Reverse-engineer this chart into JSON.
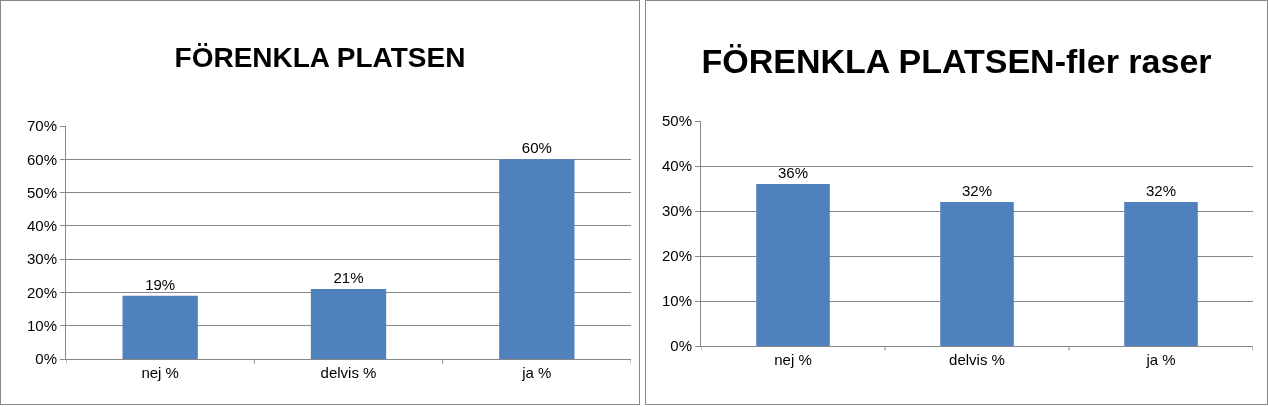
{
  "chart_data": [
    {
      "type": "bar",
      "title": "FÖRENKLA PLATSEN",
      "categories": [
        "nej %",
        "delvis %",
        "ja %"
      ],
      "values": [
        19,
        21,
        60
      ],
      "value_labels": [
        "19%",
        "21%",
        "60%"
      ],
      "color": "#4f81bd",
      "ylim": [
        0,
        70
      ],
      "yticks": [
        {
          "value": 0,
          "label": "0%"
        },
        {
          "value": 10,
          "label": "10%"
        },
        {
          "value": 20,
          "label": "20%"
        },
        {
          "value": 30,
          "label": "30%"
        },
        {
          "value": 40,
          "label": "40%"
        },
        {
          "value": 50,
          "label": "50%"
        },
        {
          "value": 60,
          "label": "60%"
        },
        {
          "value": 70,
          "label": "70%"
        }
      ],
      "grid": "y",
      "legend": false
    },
    {
      "type": "bar",
      "title": "FÖRENKLA PLATSEN-fler raser",
      "categories": [
        "nej %",
        "delvis %",
        "ja %"
      ],
      "values": [
        36,
        32,
        32
      ],
      "value_labels": [
        "36%",
        "32%",
        "32%"
      ],
      "color": "#4f81bd",
      "ylim": [
        0,
        50
      ],
      "yticks": [
        {
          "value": 0,
          "label": "0%"
        },
        {
          "value": 10,
          "label": "10%"
        },
        {
          "value": 20,
          "label": "20%"
        },
        {
          "value": 30,
          "label": "30%"
        },
        {
          "value": 40,
          "label": "40%"
        },
        {
          "value": 50,
          "label": "50%"
        }
      ],
      "grid": "y",
      "legend": false
    }
  ]
}
